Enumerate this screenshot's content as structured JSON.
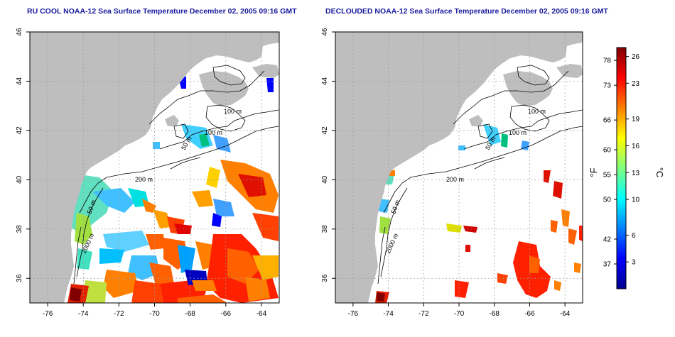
{
  "panels": [
    {
      "title": "RU COOL NOAA-12 Sea Surface Temperature December 02, 2005 09:16 GMT",
      "variant": "raw"
    },
    {
      "title": "DECLOUDED NOAA-12 Sea Surface Temperature December 02, 2005 09:16 GMT",
      "variant": "declouded"
    }
  ],
  "axes": {
    "lon_ticks": [
      "-76",
      "-74",
      "-72",
      "-70",
      "-68",
      "-66",
      "-64"
    ],
    "lat_ticks": [
      "36",
      "38",
      "40",
      "42",
      "44",
      "46"
    ],
    "lon_range": [
      -77,
      -63
    ],
    "lat_range": [
      35,
      46
    ]
  },
  "contours": {
    "labels": [
      "100 m",
      "100 m",
      "50 m",
      "200 m",
      "50 m",
      "2000 m"
    ]
  },
  "colorbar": {
    "fahrenheit_label": "°F",
    "celsius_label": "°C",
    "fahrenheit_ticks": [
      "78",
      "73",
      "66",
      "60",
      "55",
      "50",
      "42",
      "37"
    ],
    "celsius_ticks": [
      "26",
      "23",
      "19",
      "16",
      "13",
      "10",
      "6",
      "3"
    ],
    "range_c": [
      0,
      27
    ],
    "colors": [
      "#00008f",
      "#0000ff",
      "#0080ff",
      "#00ffff",
      "#80ff80",
      "#ffff00",
      "#ff8000",
      "#ff0000",
      "#800000"
    ]
  },
  "colors": {
    "land": "#bebebe",
    "ocean": "#ffffff",
    "contour": "#000000",
    "grid": "#9a9a9a",
    "title": "#1a1a9e"
  }
}
